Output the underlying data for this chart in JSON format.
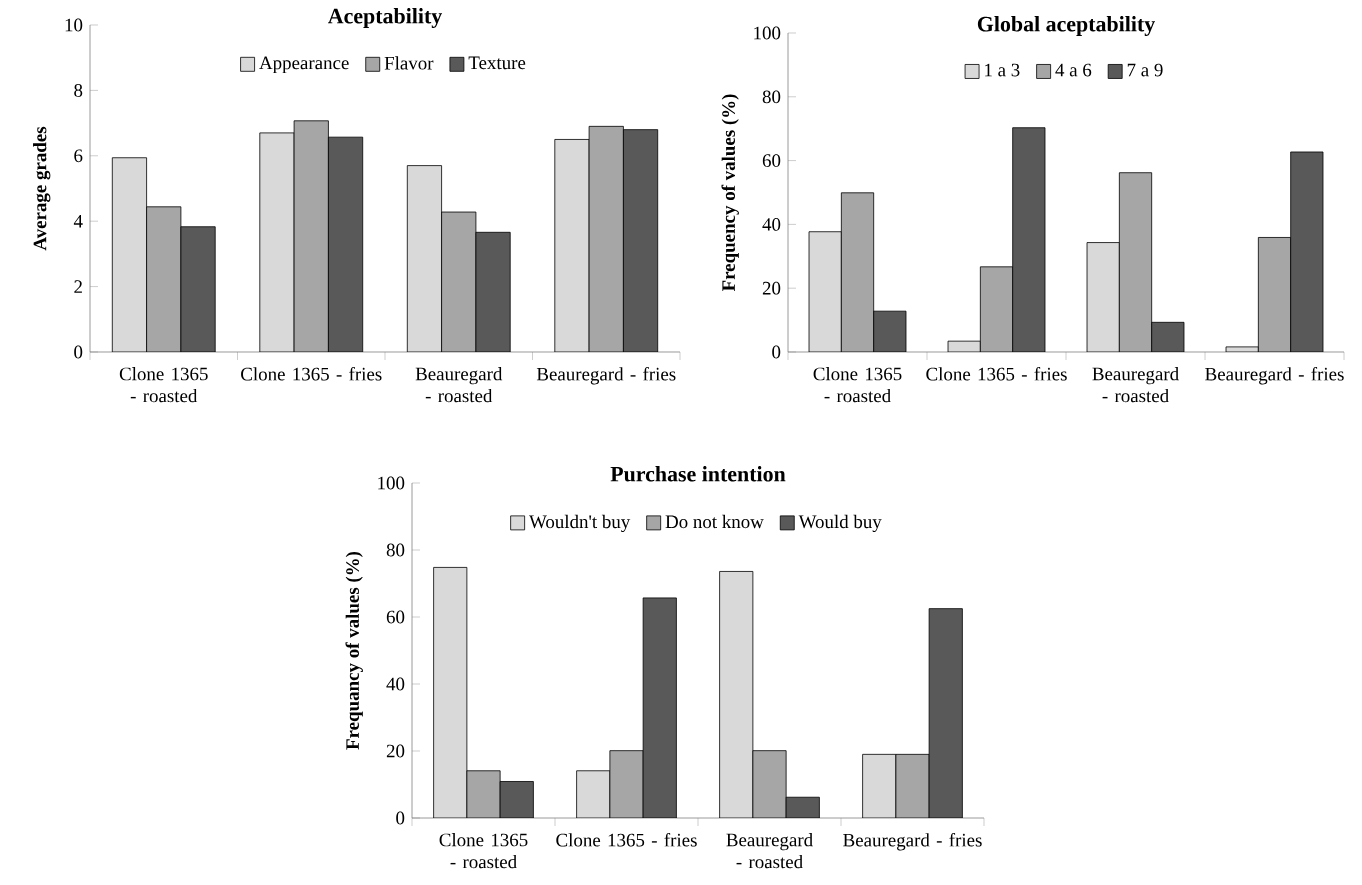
{
  "chart_data": [
    {
      "type": "bar",
      "title": "Aceptability",
      "ylabel": "Average grades",
      "categories": [
        "Clone 1365 - roasted",
        "Clone 1365 - fries",
        "Beauregard - roasted",
        "Beauregard - fries"
      ],
      "ylim": [
        0,
        10
      ],
      "yticks": [
        0,
        2,
        4,
        6,
        8,
        10
      ],
      "legend": "top",
      "grid": false,
      "series": [
        {
          "name": "Appearance",
          "color": "#d9d9d9",
          "values": [
            5.94,
            6.7,
            5.7,
            6.5
          ]
        },
        {
          "name": "Flavor",
          "color": "#a6a6a6",
          "values": [
            4.44,
            7.07,
            4.28,
            6.9
          ]
        },
        {
          "name": "Texture",
          "color": "#595959",
          "values": [
            3.83,
            6.57,
            3.66,
            6.8
          ]
        }
      ]
    },
    {
      "type": "bar",
      "title": "Global aceptability",
      "ylabel": "Frequency  of values (%)",
      "categories": [
        "Clone 1365 - roasted",
        "Clone 1365 - fries",
        "Beauregard - roasted",
        "Beauregard - fries"
      ],
      "ylim": [
        0,
        100
      ],
      "yticks": [
        0,
        20,
        40,
        60,
        80,
        100
      ],
      "legend": "top",
      "grid": false,
      "series": [
        {
          "name": "1 a 3",
          "color": "#d9d9d9",
          "values": [
            37.7,
            3.4,
            34.3,
            1.6
          ]
        },
        {
          "name": "4 a 6",
          "color": "#a6a6a6",
          "values": [
            49.9,
            26.7,
            56.2,
            35.9
          ]
        },
        {
          "name": "7 a 9",
          "color": "#595959",
          "values": [
            12.8,
            70.3,
            9.3,
            62.7
          ]
        }
      ]
    },
    {
      "type": "bar",
      "title": "Purchase intention",
      "ylabel": "Frequancy  of values (%)",
      "categories": [
        "Clone 1365 - roasted",
        "Clone 1365 - fries",
        "Beauregard - roasted",
        "Beauregard - fries"
      ],
      "ylim": [
        0,
        100
      ],
      "yticks": [
        0,
        20,
        40,
        60,
        80,
        100
      ],
      "legend": "top",
      "grid": false,
      "series": [
        {
          "name": "Wouldn't buy",
          "color": "#d9d9d9",
          "values": [
            74.8,
            14.1,
            73.6,
            19
          ]
        },
        {
          "name": "Do not know",
          "color": "#a6a6a6",
          "values": [
            14.1,
            20.1,
            20.1,
            19
          ]
        },
        {
          "name": "Would buy",
          "color": "#595959",
          "values": [
            10.9,
            65.7,
            6.2,
            62.5
          ]
        }
      ]
    }
  ]
}
